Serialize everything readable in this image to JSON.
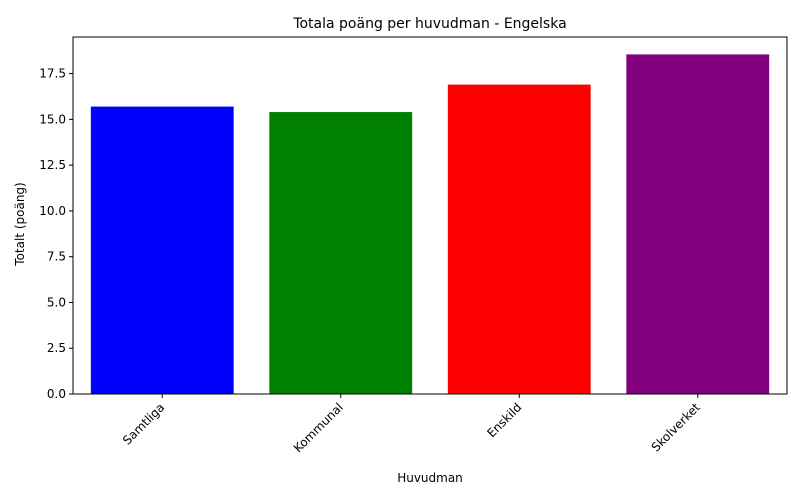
{
  "chart_data": {
    "type": "bar",
    "title": "Totala poäng per huvudman - Engelska",
    "xlabel": "Huvudman",
    "ylabel": "Totalt (poäng)",
    "categories": [
      "Samtliga",
      "Kommunal",
      "Enskild",
      "Skolverket"
    ],
    "values": [
      15.7,
      15.4,
      16.9,
      18.55
    ],
    "colors": [
      "#0000ff",
      "#008000",
      "#ff0000",
      "#800080"
    ],
    "ylim": [
      0,
      19.5
    ],
    "yticks": [
      "0.0",
      "2.5",
      "5.0",
      "7.5",
      "10.0",
      "12.5",
      "15.0",
      "17.5"
    ],
    "grid": false,
    "legend": "none"
  }
}
